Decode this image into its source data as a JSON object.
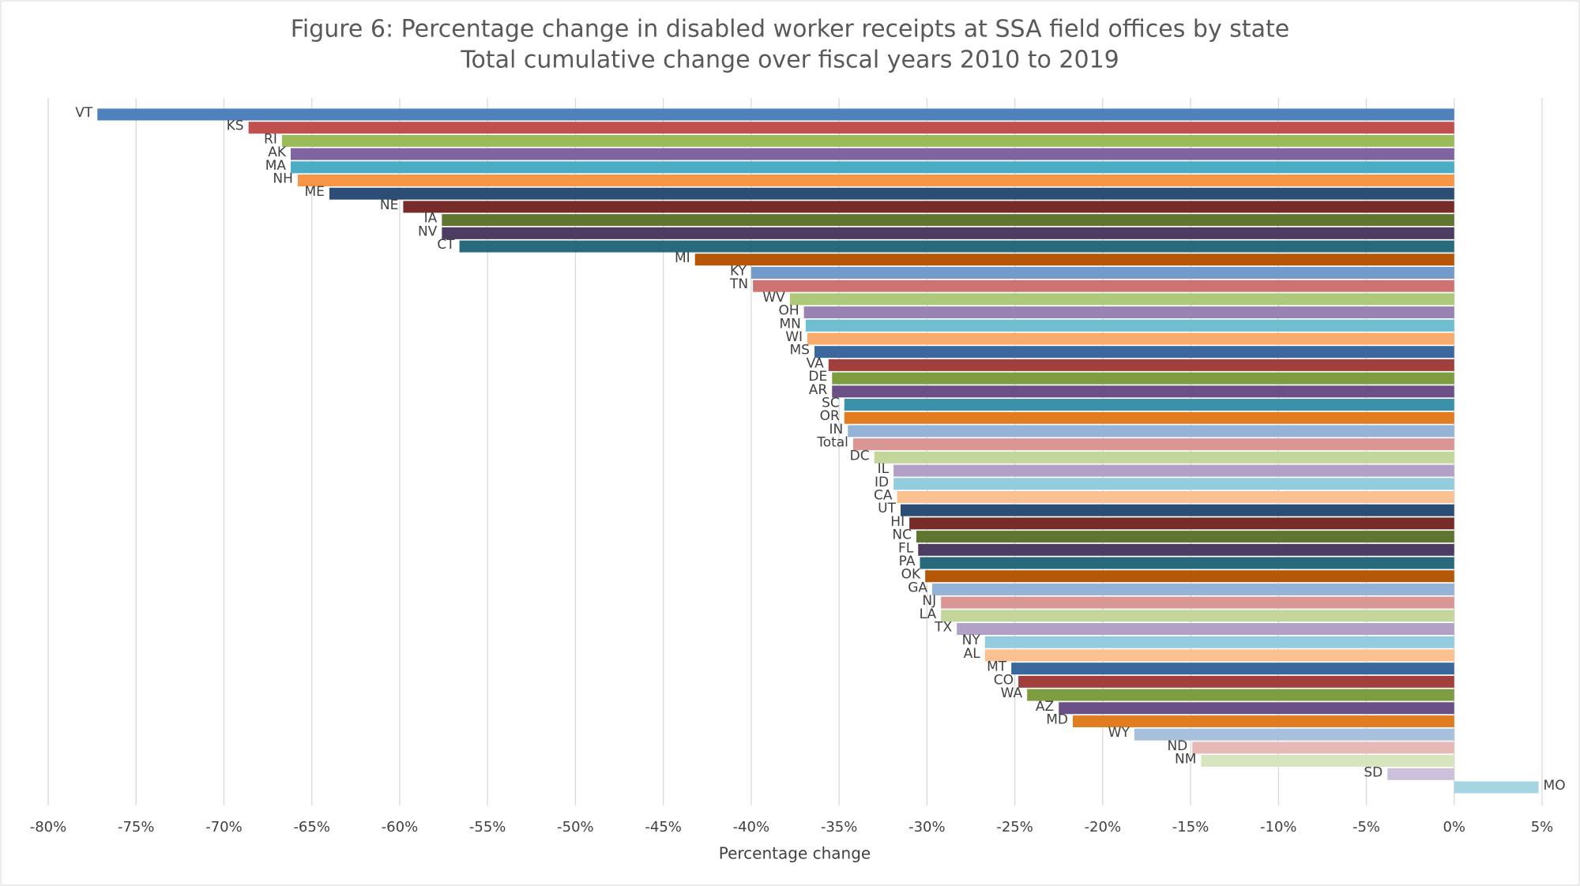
{
  "chart_data": {
    "type": "hbar",
    "title": "Figure 6: Percentage change in disabled worker receipts at SSA field offices by state",
    "subtitle": "Total cumulative change over fiscal years 2010 to 2019",
    "x_label": "Percentage change",
    "categories": [
      "VT",
      "KS",
      "RI",
      "AK",
      "MA",
      "NH",
      "ME",
      "NE",
      "IA",
      "NV",
      "CT",
      "MI",
      "KY",
      "TN",
      "WV",
      "OH",
      "MN",
      "WI",
      "MS",
      "VA",
      "DE",
      "AR",
      "SC",
      "OR",
      "IN",
      "Total",
      "DC",
      "IL",
      "ID",
      "CA",
      "UT",
      "HI",
      "NC",
      "FL",
      "PA",
      "OK",
      "GA",
      "NJ",
      "LA",
      "TX",
      "NY",
      "AL",
      "MT",
      "CO",
      "WA",
      "AZ",
      "MD",
      "WY",
      "ND",
      "NM",
      "SD",
      "MO"
    ],
    "values": [
      -77.2,
      -68.6,
      -66.7,
      -66.2,
      -66.2,
      -65.8,
      -64.0,
      -59.8,
      -57.6,
      -57.6,
      -56.6,
      -43.2,
      -40.0,
      -39.9,
      -37.8,
      -37.0,
      -36.9,
      -36.8,
      -36.4,
      -35.6,
      -35.4,
      -35.4,
      -34.7,
      -34.7,
      -34.5,
      -34.2,
      -33.0,
      -31.9,
      -31.9,
      -31.7,
      -31.5,
      -31.0,
      -30.6,
      -30.5,
      -30.4,
      -30.1,
      -29.7,
      -29.2,
      -29.2,
      -28.3,
      -26.7,
      -26.7,
      -25.2,
      -24.8,
      -24.3,
      -22.5,
      -21.7,
      -18.2,
      -14.9,
      -14.4,
      -3.8,
      4.8
    ],
    "colors": [
      "#4f81bd",
      "#c0504d",
      "#9bbb59",
      "#8064a2",
      "#4bacc6",
      "#f79646",
      "#2c4d75",
      "#772c2a",
      "#5f7530",
      "#4d3b62",
      "#276a7c",
      "#b65708",
      "#729aca",
      "#cd7371",
      "#afc97a",
      "#9983b5",
      "#6fbdd1",
      "#f9ab6b",
      "#3a679c",
      "#a13f3c",
      "#7e9d40",
      "#6a5087",
      "#3a91a8",
      "#e27c20",
      "#95b3d7",
      "#d99694",
      "#c3d69b",
      "#b2a1c7",
      "#93cddd",
      "#fac090",
      "#2c4d75",
      "#772c2a",
      "#5f7530",
      "#4d3b62",
      "#276a7c",
      "#b65708",
      "#95b3d7",
      "#d99694",
      "#c3d69b",
      "#b2a1c7",
      "#93cddd",
      "#fac090",
      "#3a679c",
      "#a13f3c",
      "#7e9d40",
      "#6a5087",
      "#e27c20",
      "#a7c0de",
      "#e6b9b8",
      "#d7e4bd",
      "#ccc1da",
      "#a5d5e2"
    ],
    "xlim": [
      -80,
      5
    ],
    "xticks": [
      {
        "value": -80,
        "label": "-80%"
      },
      {
        "value": -75,
        "label": "-75%"
      },
      {
        "value": -70,
        "label": "-70%"
      },
      {
        "value": -65,
        "label": "-65%"
      },
      {
        "value": -60,
        "label": "-60%"
      },
      {
        "value": -55,
        "label": "-55%"
      },
      {
        "value": -50,
        "label": "-50%"
      },
      {
        "value": -45,
        "label": "-45%"
      },
      {
        "value": -40,
        "label": "-40%"
      },
      {
        "value": -35,
        "label": "-35%"
      },
      {
        "value": -30,
        "label": "-30%"
      },
      {
        "value": -25,
        "label": "-25%"
      },
      {
        "value": -20,
        "label": "-20%"
      },
      {
        "value": -15,
        "label": "-15%"
      },
      {
        "value": -10,
        "label": "-10%"
      },
      {
        "value": -5,
        "label": "-5%"
      },
      {
        "value": 0,
        "label": "0%"
      },
      {
        "value": 5,
        "label": "5%"
      }
    ],
    "grid": true
  }
}
